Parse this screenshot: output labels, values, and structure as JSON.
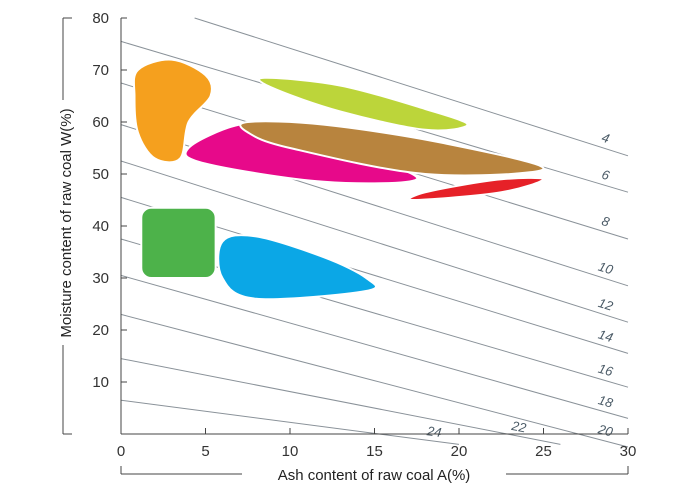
{
  "chart_data": {
    "type": "region-map",
    "xlabel": "Ash content of raw coal A(%)",
    "ylabel": "Moisture content of raw coal W(%)",
    "xlim": [
      0,
      30
    ],
    "ylim": [
      0,
      80
    ],
    "xticks": [
      0,
      5,
      10,
      15,
      20,
      25,
      30
    ],
    "yticks": [
      10,
      20,
      30,
      40,
      50,
      60,
      70,
      80
    ],
    "grid": false,
    "isolines": [
      {
        "label": "4",
        "y_at_x0": 84.5,
        "y_at_x30": 53.5
      },
      {
        "label": "6",
        "y_at_x0": 75.5,
        "y_at_x30": 46.5
      },
      {
        "label": "8",
        "y_at_x0": 67.5,
        "y_at_x30": 37.5
      },
      {
        "label": "10",
        "y_at_x0": 59.5,
        "y_at_x30": 28.5
      },
      {
        "label": "12",
        "y_at_x0": 52.5,
        "y_at_x30": 21.5
      },
      {
        "label": "14",
        "y_at_x0": 45.5,
        "y_at_x30": 15.5
      },
      {
        "label": "16",
        "y_at_x0": 37.5,
        "y_at_x30": 9
      },
      {
        "label": "18",
        "y_at_x0": 30.5,
        "y_at_x30": 3
      },
      {
        "label": "20",
        "y_at_x0": 23,
        "y_at_x30": -2.5
      },
      {
        "label": "22",
        "y_at_x0": 14.5,
        "y_at_x26": -2
      },
      {
        "label": "24",
        "y_at_x0": 6.5,
        "y_at_x20": -2
      }
    ],
    "regions": [
      {
        "color": "#f5a01e",
        "points": [
          [
            1,
            70
          ],
          [
            3,
            72
          ],
          [
            5,
            69
          ],
          [
            5.3,
            65
          ],
          [
            4,
            60
          ],
          [
            3.5,
            53
          ],
          [
            2,
            53
          ],
          [
            1,
            58
          ],
          [
            0.8,
            65
          ]
        ]
      },
      {
        "color": "#bcd53a",
        "points": [
          [
            8.5,
            68.5
          ],
          [
            13,
            67
          ],
          [
            18,
            62.5
          ],
          [
            20.5,
            59.5
          ],
          [
            18,
            58.5
          ],
          [
            13,
            62
          ],
          [
            9,
            66.5
          ]
        ]
      },
      {
        "color": "#e7098a",
        "points": [
          [
            4,
            55
          ],
          [
            7,
            59.5
          ],
          [
            10,
            59
          ],
          [
            14,
            54
          ],
          [
            17.5,
            49
          ],
          [
            12,
            48.5
          ],
          [
            5,
            52
          ]
        ]
      },
      {
        "color": "#b8843e",
        "points": [
          [
            7.5,
            60
          ],
          [
            12,
            59.5
          ],
          [
            19,
            56
          ],
          [
            25,
            51
          ],
          [
            18,
            50
          ],
          [
            10,
            55
          ],
          [
            7.5,
            58
          ]
        ]
      },
      {
        "color": "#e62128",
        "points": [
          [
            17.5,
            45
          ],
          [
            22.5,
            46.5
          ],
          [
            25,
            49
          ],
          [
            22.5,
            49
          ],
          [
            19.5,
            47.5
          ],
          [
            17.5,
            46
          ]
        ]
      },
      {
        "color": "#4db24a",
        "points": [
          [
            1.2,
            43.5
          ],
          [
            5.6,
            43.5
          ],
          [
            5.6,
            30
          ],
          [
            1.2,
            30
          ]
        ]
      },
      {
        "color": "#0ba7e6",
        "points": [
          [
            6,
            37
          ],
          [
            8,
            38
          ],
          [
            12,
            34
          ],
          [
            14.5,
            30
          ],
          [
            14.5,
            27.5
          ],
          [
            8,
            26
          ],
          [
            6,
            30
          ]
        ]
      }
    ]
  }
}
